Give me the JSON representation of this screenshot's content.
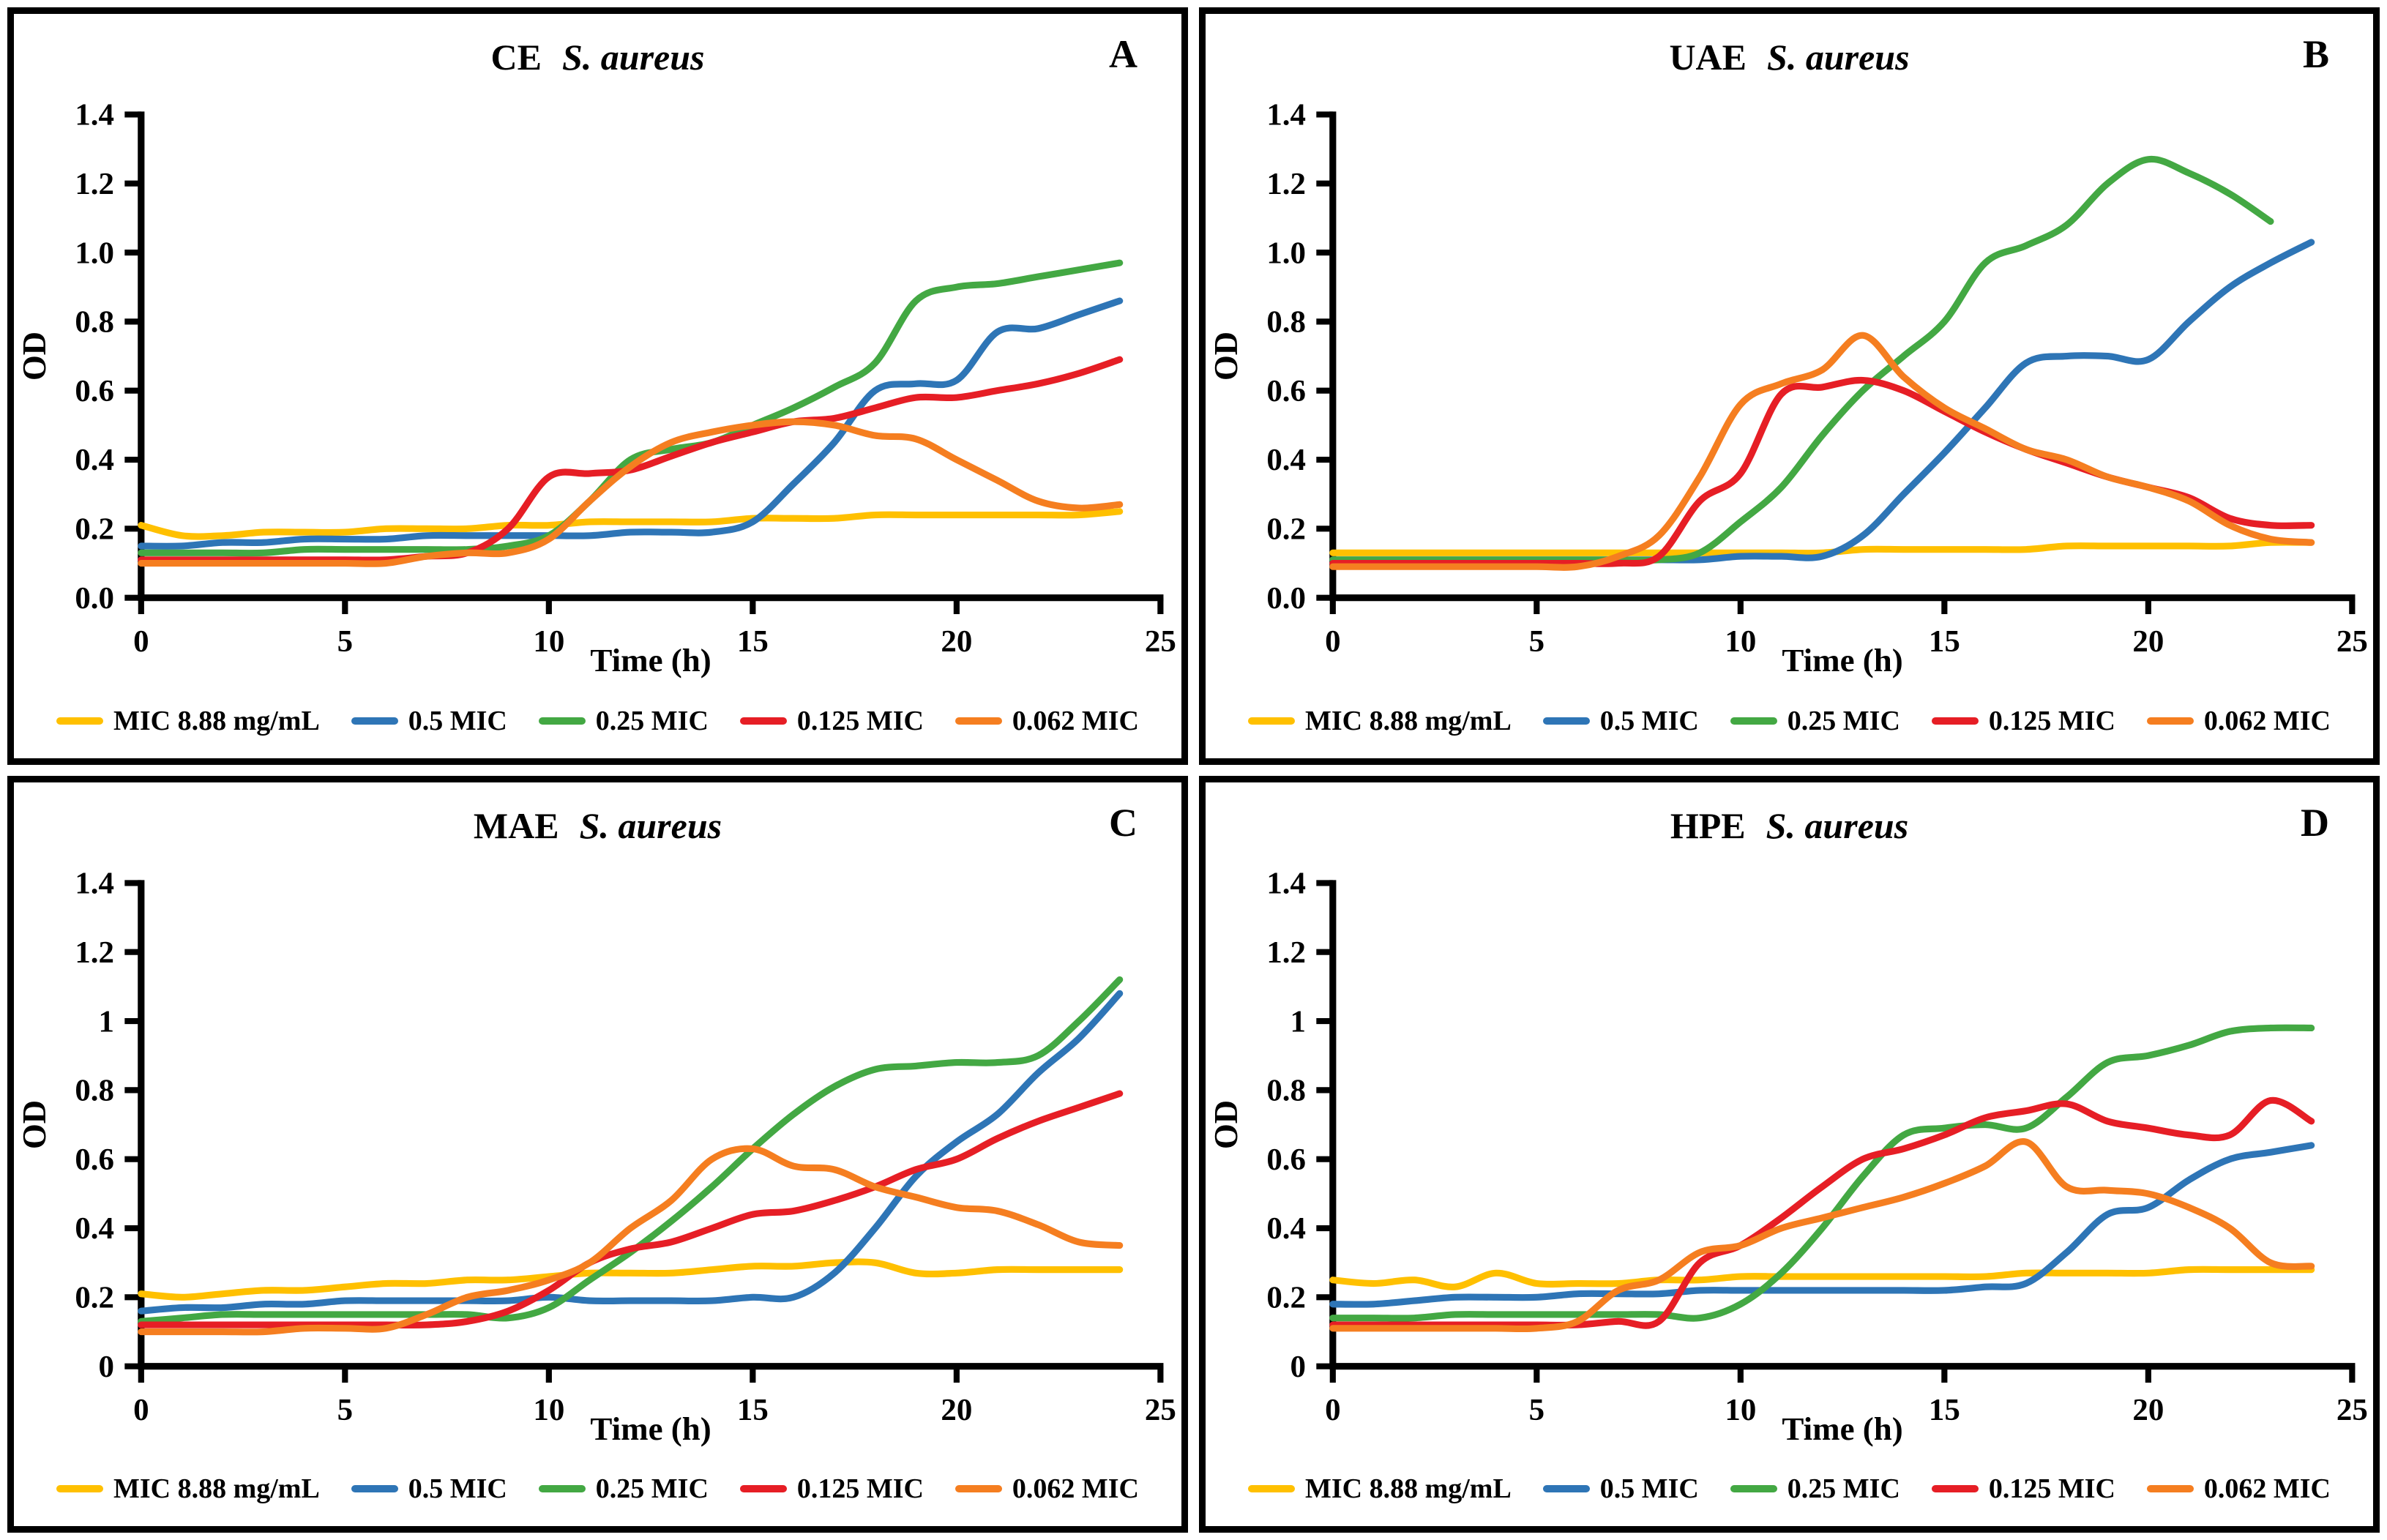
{
  "page": {
    "background": "#ffffff"
  },
  "axis": {
    "x_label": "Time (h)",
    "y_label": "OD",
    "x_ticks": [
      0,
      5,
      10,
      15,
      20,
      25
    ],
    "x_range": [
      0,
      25
    ],
    "y_range": [
      0,
      1.4
    ],
    "y_tick_step": 0.2
  },
  "legend": {
    "items": [
      {
        "label": "MIC 8.88 mg/mL",
        "color": "#FFC000"
      },
      {
        "label": "0.5 MIC",
        "color": "#2E75B6"
      },
      {
        "label": "0.25 MIC",
        "color": "#43A843"
      },
      {
        "label": "0.125 MIC",
        "color": "#E61E25"
      },
      {
        "label": "0.062 MIC",
        "color": "#F57E20"
      }
    ]
  },
  "chart_data": [
    {
      "type": "line",
      "panel_label": "A",
      "title_prefix": "CE",
      "title_species": "S. aureus",
      "xlabel": "Time (h)",
      "ylabel": "OD",
      "xlim": [
        0,
        25
      ],
      "ylim": [
        0,
        1.4
      ],
      "grid": false,
      "legend_position": "bottom",
      "y_tick_labels": [
        "0.0",
        "0.2",
        "0.4",
        "0.6",
        "0.8",
        "1.0",
        "1.2",
        "1.4"
      ],
      "x": [
        0,
        1,
        2,
        3,
        4,
        5,
        6,
        7,
        8,
        9,
        10,
        11,
        12,
        13,
        14,
        15,
        16,
        17,
        18,
        19,
        20,
        21,
        22,
        23,
        24
      ],
      "series": [
        {
          "name": "MIC 8.88 mg/mL",
          "color": "#FFC000",
          "values": [
            0.21,
            0.18,
            0.18,
            0.19,
            0.19,
            0.19,
            0.2,
            0.2,
            0.2,
            0.21,
            0.21,
            0.22,
            0.22,
            0.22,
            0.22,
            0.23,
            0.23,
            0.23,
            0.24,
            0.24,
            0.24,
            0.24,
            0.24,
            0.24,
            0.25
          ]
        },
        {
          "name": "0.5 MIC",
          "color": "#2E75B6",
          "values": [
            0.15,
            0.15,
            0.16,
            0.16,
            0.17,
            0.17,
            0.17,
            0.18,
            0.18,
            0.18,
            0.18,
            0.18,
            0.19,
            0.19,
            0.19,
            0.22,
            0.33,
            0.45,
            0.6,
            0.62,
            0.63,
            0.77,
            0.78,
            0.82,
            0.86
          ]
        },
        {
          "name": "0.25 MIC",
          "color": "#43A843",
          "values": [
            0.13,
            0.13,
            0.13,
            0.13,
            0.14,
            0.14,
            0.14,
            0.14,
            0.14,
            0.15,
            0.18,
            0.28,
            0.4,
            0.43,
            0.45,
            0.5,
            0.55,
            0.61,
            0.68,
            0.86,
            0.9,
            0.91,
            0.93,
            0.95,
            0.97
          ]
        },
        {
          "name": "0.125 MIC",
          "color": "#E61E25",
          "values": [
            0.11,
            0.11,
            0.11,
            0.11,
            0.11,
            0.11,
            0.11,
            0.12,
            0.13,
            0.2,
            0.35,
            0.36,
            0.37,
            0.41,
            0.45,
            0.48,
            0.51,
            0.52,
            0.55,
            0.58,
            0.58,
            0.6,
            0.62,
            0.65,
            0.69
          ]
        },
        {
          "name": "0.062 MIC",
          "color": "#F57E20",
          "values": [
            0.1,
            0.1,
            0.1,
            0.1,
            0.1,
            0.1,
            0.1,
            0.12,
            0.13,
            0.13,
            0.17,
            0.28,
            0.38,
            0.45,
            0.48,
            0.5,
            0.51,
            0.5,
            0.47,
            0.46,
            0.4,
            0.34,
            0.28,
            0.26,
            0.27
          ]
        }
      ]
    },
    {
      "type": "line",
      "panel_label": "B",
      "title_prefix": "UAE",
      "title_species": "S. aureus",
      "xlabel": "Time (h)",
      "ylabel": "OD",
      "xlim": [
        0,
        25
      ],
      "ylim": [
        0,
        1.4
      ],
      "grid": false,
      "legend_position": "bottom",
      "y_tick_labels": [
        "0.0",
        "0.2",
        "0.4",
        "0.6",
        "0.8",
        "1.0",
        "1.2",
        "1.4"
      ],
      "x": [
        0,
        1,
        2,
        3,
        4,
        5,
        6,
        7,
        8,
        9,
        10,
        11,
        12,
        13,
        14,
        15,
        16,
        17,
        18,
        19,
        20,
        21,
        22,
        23,
        24
      ],
      "series": [
        {
          "name": "MIC 8.88 mg/mL",
          "color": "#FFC000",
          "values": [
            0.13,
            0.13,
            0.13,
            0.13,
            0.13,
            0.13,
            0.13,
            0.13,
            0.13,
            0.13,
            0.13,
            0.13,
            0.13,
            0.14,
            0.14,
            0.14,
            0.14,
            0.14,
            0.15,
            0.15,
            0.15,
            0.15,
            0.15,
            0.16,
            0.16
          ]
        },
        {
          "name": "0.5 MIC",
          "color": "#2E75B6",
          "values": [
            0.11,
            0.11,
            0.11,
            0.11,
            0.11,
            0.11,
            0.11,
            0.11,
            0.11,
            0.11,
            0.12,
            0.12,
            0.12,
            0.18,
            0.3,
            0.42,
            0.55,
            0.68,
            0.7,
            0.7,
            0.69,
            0.8,
            0.9,
            0.97,
            1.03
          ]
        },
        {
          "name": "0.25 MIC",
          "color": "#43A843",
          "values": [
            0.11,
            0.11,
            0.11,
            0.11,
            0.11,
            0.11,
            0.11,
            0.11,
            0.11,
            0.13,
            0.22,
            0.32,
            0.47,
            0.6,
            0.7,
            0.8,
            0.97,
            1.02,
            1.08,
            1.2,
            1.27,
            1.23,
            1.17,
            1.09,
            null
          ]
        },
        {
          "name": "0.125 MIC",
          "color": "#E61E25",
          "values": [
            0.1,
            0.1,
            0.1,
            0.1,
            0.1,
            0.1,
            0.1,
            0.1,
            0.12,
            0.28,
            0.36,
            0.59,
            0.61,
            0.63,
            0.6,
            0.54,
            0.48,
            0.43,
            0.39,
            0.35,
            0.32,
            0.29,
            0.23,
            0.21,
            0.21
          ]
        },
        {
          "name": "0.062 MIC",
          "color": "#F57E20",
          "values": [
            0.09,
            0.09,
            0.09,
            0.09,
            0.09,
            0.09,
            0.09,
            0.12,
            0.18,
            0.35,
            0.56,
            0.62,
            0.66,
            0.76,
            0.64,
            0.55,
            0.49,
            0.43,
            0.4,
            0.35,
            0.32,
            0.28,
            0.21,
            0.17,
            0.16
          ]
        }
      ]
    },
    {
      "type": "line",
      "panel_label": "C",
      "title_prefix": "MAE",
      "title_species": "S. aureus",
      "xlabel": "Time (h)",
      "ylabel": "OD",
      "xlim": [
        0,
        25
      ],
      "ylim": [
        0,
        1.4
      ],
      "grid": false,
      "legend_position": "bottom",
      "y_tick_labels": [
        "0",
        "0.2",
        "0.4",
        "0.6",
        "0.8",
        "1",
        "1.2",
        "1.4"
      ],
      "x": [
        0,
        1,
        2,
        3,
        4,
        5,
        6,
        7,
        8,
        9,
        10,
        11,
        12,
        13,
        14,
        15,
        16,
        17,
        18,
        19,
        20,
        21,
        22,
        23,
        24
      ],
      "series": [
        {
          "name": "MIC 8.88 mg/mL",
          "color": "#FFC000",
          "values": [
            0.21,
            0.2,
            0.21,
            0.22,
            0.22,
            0.23,
            0.24,
            0.24,
            0.25,
            0.25,
            0.26,
            0.27,
            0.27,
            0.27,
            0.28,
            0.29,
            0.29,
            0.3,
            0.3,
            0.27,
            0.27,
            0.28,
            0.28,
            0.28,
            0.28
          ]
        },
        {
          "name": "0.5 MIC",
          "color": "#2E75B6",
          "values": [
            0.16,
            0.17,
            0.17,
            0.18,
            0.18,
            0.19,
            0.19,
            0.19,
            0.19,
            0.19,
            0.2,
            0.19,
            0.19,
            0.19,
            0.19,
            0.2,
            0.2,
            0.27,
            0.4,
            0.55,
            0.65,
            0.73,
            0.85,
            0.95,
            1.08
          ]
        },
        {
          "name": "0.25 MIC",
          "color": "#43A843",
          "values": [
            0.13,
            0.14,
            0.15,
            0.15,
            0.15,
            0.15,
            0.15,
            0.15,
            0.15,
            0.14,
            0.17,
            0.25,
            0.33,
            0.42,
            0.52,
            0.63,
            0.73,
            0.81,
            0.86,
            0.87,
            0.88,
            0.88,
            0.9,
            1.0,
            1.12
          ]
        },
        {
          "name": "0.125 MIC",
          "color": "#E61E25",
          "values": [
            0.12,
            0.12,
            0.12,
            0.12,
            0.12,
            0.12,
            0.12,
            0.12,
            0.13,
            0.16,
            0.22,
            0.3,
            0.34,
            0.36,
            0.4,
            0.44,
            0.45,
            0.48,
            0.52,
            0.57,
            0.6,
            0.66,
            0.71,
            0.75,
            0.79
          ]
        },
        {
          "name": "0.062 MIC",
          "color": "#F57E20",
          "values": [
            0.1,
            0.1,
            0.1,
            0.1,
            0.11,
            0.11,
            0.11,
            0.15,
            0.2,
            0.22,
            0.25,
            0.3,
            0.4,
            0.48,
            0.6,
            0.63,
            0.58,
            0.57,
            0.52,
            0.49,
            0.46,
            0.45,
            0.41,
            0.36,
            0.35
          ]
        }
      ]
    },
    {
      "type": "line",
      "panel_label": "D",
      "title_prefix": "HPE",
      "title_species": "S. aureus",
      "xlabel": "Time (h)",
      "ylabel": "OD",
      "xlim": [
        0,
        25
      ],
      "ylim": [
        0,
        1.4
      ],
      "grid": false,
      "legend_position": "bottom",
      "y_tick_labels": [
        "0",
        "0.2",
        "0.4",
        "0.6",
        "0.8",
        "1",
        "1.2",
        "1.4"
      ],
      "x": [
        0,
        1,
        2,
        3,
        4,
        5,
        6,
        7,
        8,
        9,
        10,
        11,
        12,
        13,
        14,
        15,
        16,
        17,
        18,
        19,
        20,
        21,
        22,
        23,
        24
      ],
      "series": [
        {
          "name": "MIC 8.88 mg/mL",
          "color": "#FFC000",
          "values": [
            0.25,
            0.24,
            0.25,
            0.23,
            0.27,
            0.24,
            0.24,
            0.24,
            0.25,
            0.25,
            0.26,
            0.26,
            0.26,
            0.26,
            0.26,
            0.26,
            0.26,
            0.27,
            0.27,
            0.27,
            0.27,
            0.28,
            0.28,
            0.28,
            0.28
          ]
        },
        {
          "name": "0.5 MIC",
          "color": "#2E75B6",
          "values": [
            0.18,
            0.18,
            0.19,
            0.2,
            0.2,
            0.2,
            0.21,
            0.21,
            0.21,
            0.22,
            0.22,
            0.22,
            0.22,
            0.22,
            0.22,
            0.22,
            0.23,
            0.24,
            0.33,
            0.44,
            0.46,
            0.54,
            0.6,
            0.62,
            0.64
          ]
        },
        {
          "name": "0.25 MIC",
          "color": "#43A843",
          "values": [
            0.14,
            0.14,
            0.14,
            0.15,
            0.15,
            0.15,
            0.15,
            0.15,
            0.15,
            0.14,
            0.18,
            0.27,
            0.4,
            0.55,
            0.67,
            0.69,
            0.7,
            0.69,
            0.78,
            0.88,
            0.9,
            0.93,
            0.97,
            0.98,
            0.98
          ]
        },
        {
          "name": "0.125 MIC",
          "color": "#E61E25",
          "values": [
            0.12,
            0.12,
            0.12,
            0.12,
            0.12,
            0.12,
            0.12,
            0.13,
            0.13,
            0.3,
            0.35,
            0.43,
            0.52,
            0.6,
            0.63,
            0.67,
            0.72,
            0.74,
            0.76,
            0.71,
            0.69,
            0.67,
            0.67,
            0.77,
            0.71
          ]
        },
        {
          "name": "0.062 MIC",
          "color": "#F57E20",
          "values": [
            0.11,
            0.11,
            0.11,
            0.11,
            0.11,
            0.11,
            0.13,
            0.22,
            0.25,
            0.33,
            0.35,
            0.4,
            0.43,
            0.46,
            0.49,
            0.53,
            0.58,
            0.65,
            0.52,
            0.51,
            0.5,
            0.46,
            0.4,
            0.3,
            0.29
          ]
        }
      ]
    }
  ]
}
